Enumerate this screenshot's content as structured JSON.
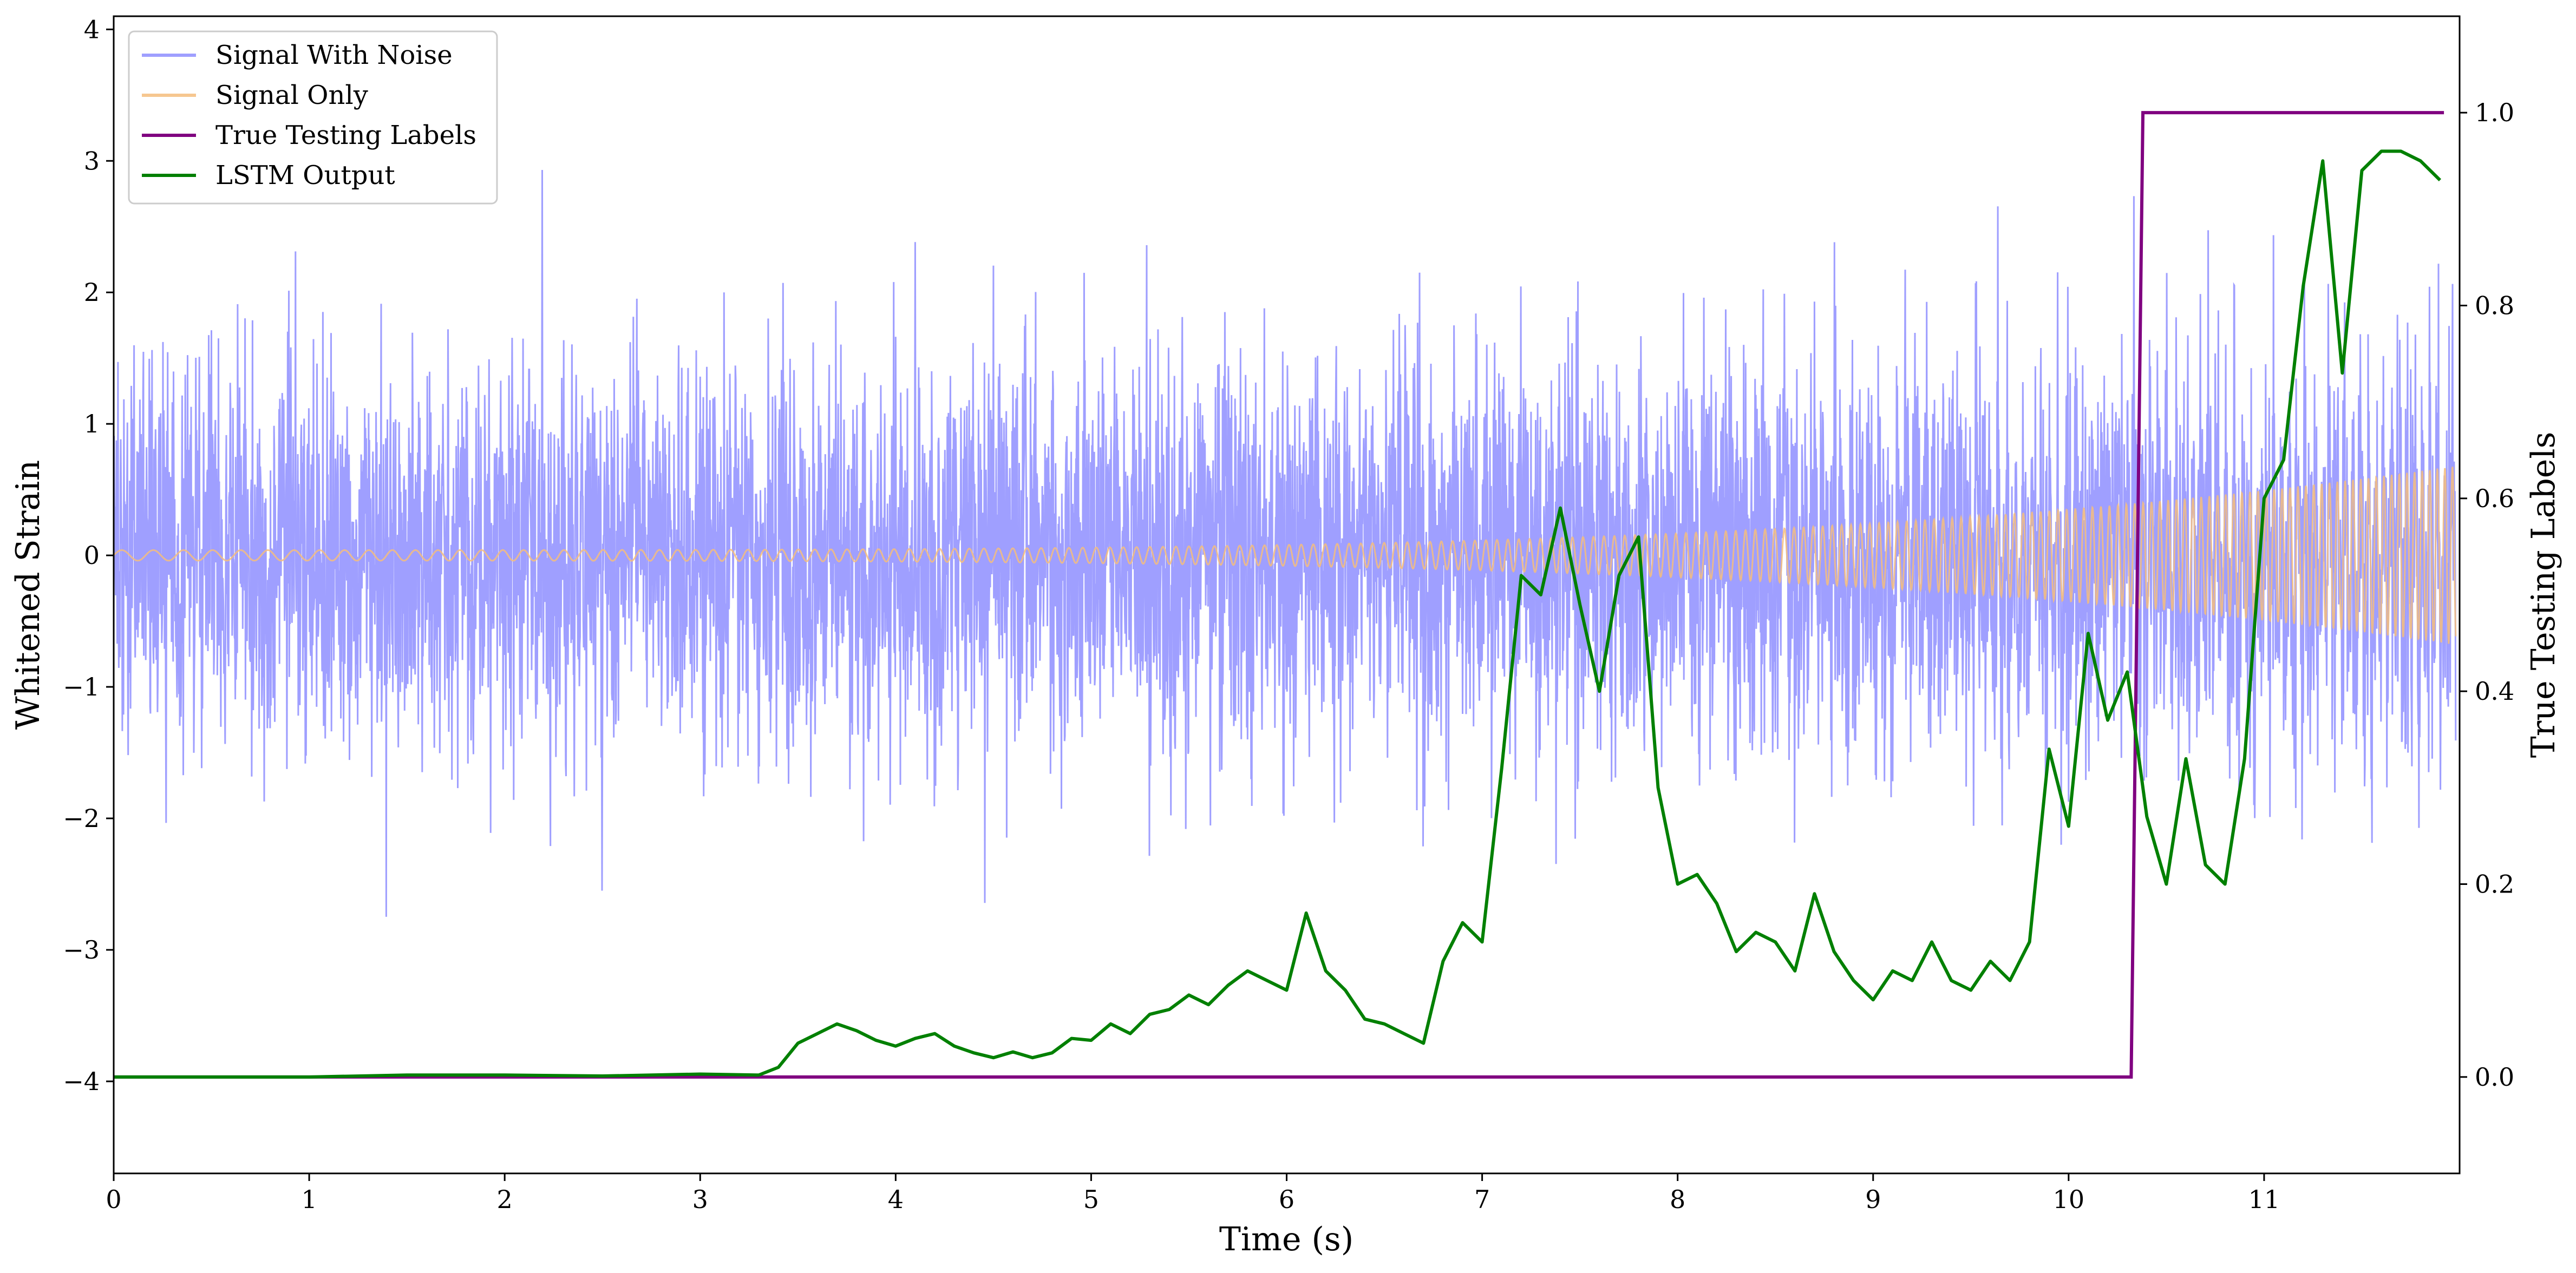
{
  "chart_data": {
    "type": "line",
    "xlabel": "Time (s)",
    "ylabel_left": "Whitened Strain",
    "ylabel_right": "True Testing Labels",
    "xlim": [
      0,
      12
    ],
    "ylim_left": [
      -4.7,
      4.1
    ],
    "ylim_right": [
      -0.1,
      1.1
    ],
    "x_ticks": [
      0,
      1,
      2,
      3,
      4,
      5,
      6,
      7,
      8,
      9,
      10,
      11
    ],
    "y_left_ticks": [
      -4,
      -3,
      -2,
      -1,
      0,
      1,
      2,
      3,
      4
    ],
    "y_right_ticks": [
      0.0,
      0.2,
      0.4,
      0.6,
      0.8,
      1.0
    ],
    "x_tick_labels": [
      "0",
      "1",
      "2",
      "3",
      "4",
      "5",
      "6",
      "7",
      "8",
      "9",
      "10",
      "11"
    ],
    "y_left_tick_labels": [
      "−4",
      "−3",
      "−2",
      "−1",
      "0",
      "1",
      "2",
      "3",
      "4"
    ],
    "y_right_tick_labels": [
      "0.0",
      "0.2",
      "0.4",
      "0.6",
      "0.8",
      "1.0"
    ],
    "grid": false,
    "legend_position": "top-left",
    "series": [
      {
        "name": "Signal With Noise",
        "axis": "left",
        "color": "#7f7fff",
        "description_kind": "noise",
        "noise_std": 0.75,
        "sample_rate_hz": 500
      },
      {
        "name": "Signal Only",
        "axis": "left",
        "color": "#f5bd7c",
        "description_kind": "chirp",
        "amplitude_start": 0.04,
        "amplitude_end": 0.68,
        "frequency_start_hz": 6,
        "frequency_end_hz": 26
      },
      {
        "name": "True Testing Labels",
        "axis": "right",
        "color": "#800080",
        "x": [
          0,
          10.32,
          10.38,
          11.92
        ],
        "y": [
          0,
          0,
          1,
          1
        ]
      },
      {
        "name": "LSTM Output",
        "axis": "right",
        "color": "#008000",
        "x": [
          0,
          0.5,
          1.0,
          1.5,
          2.0,
          2.5,
          3.0,
          3.3,
          3.4,
          3.5,
          3.6,
          3.7,
          3.8,
          3.9,
          4.0,
          4.1,
          4.2,
          4.3,
          4.4,
          4.5,
          4.6,
          4.7,
          4.8,
          4.9,
          5.0,
          5.1,
          5.2,
          5.3,
          5.4,
          5.5,
          5.6,
          5.7,
          5.8,
          5.9,
          6.0,
          6.1,
          6.2,
          6.3,
          6.4,
          6.5,
          6.6,
          6.7,
          6.8,
          6.9,
          7.0,
          7.1,
          7.2,
          7.3,
          7.4,
          7.5,
          7.6,
          7.7,
          7.8,
          7.9,
          8.0,
          8.1,
          8.2,
          8.3,
          8.4,
          8.5,
          8.6,
          8.7,
          8.8,
          8.9,
          9.0,
          9.1,
          9.2,
          9.3,
          9.4,
          9.5,
          9.6,
          9.7,
          9.8,
          9.9,
          10.0,
          10.1,
          10.2,
          10.3,
          10.4,
          10.5,
          10.6,
          10.7,
          10.8,
          10.9,
          11.0,
          11.1,
          11.2,
          11.3,
          11.4,
          11.5,
          11.6,
          11.7,
          11.8,
          11.9
        ],
        "y": [
          0.0,
          0.0,
          0.0,
          0.002,
          0.002,
          0.001,
          0.003,
          0.002,
          0.01,
          0.035,
          0.045,
          0.055,
          0.048,
          0.038,
          0.032,
          0.04,
          0.045,
          0.032,
          0.025,
          0.02,
          0.026,
          0.02,
          0.025,
          0.04,
          0.038,
          0.055,
          0.045,
          0.065,
          0.07,
          0.085,
          0.075,
          0.095,
          0.11,
          0.1,
          0.09,
          0.17,
          0.11,
          0.09,
          0.06,
          0.055,
          0.045,
          0.035,
          0.12,
          0.16,
          0.14,
          0.32,
          0.52,
          0.5,
          0.59,
          0.49,
          0.4,
          0.52,
          0.56,
          0.3,
          0.2,
          0.21,
          0.18,
          0.13,
          0.15,
          0.14,
          0.11,
          0.19,
          0.13,
          0.1,
          0.08,
          0.11,
          0.1,
          0.14,
          0.1,
          0.09,
          0.12,
          0.1,
          0.14,
          0.34,
          0.26,
          0.46,
          0.37,
          0.42,
          0.27,
          0.2,
          0.33,
          0.22,
          0.2,
          0.33,
          0.6,
          0.64,
          0.82,
          0.95,
          0.73,
          0.94,
          0.96,
          0.96,
          0.95,
          0.93
        ]
      }
    ]
  }
}
